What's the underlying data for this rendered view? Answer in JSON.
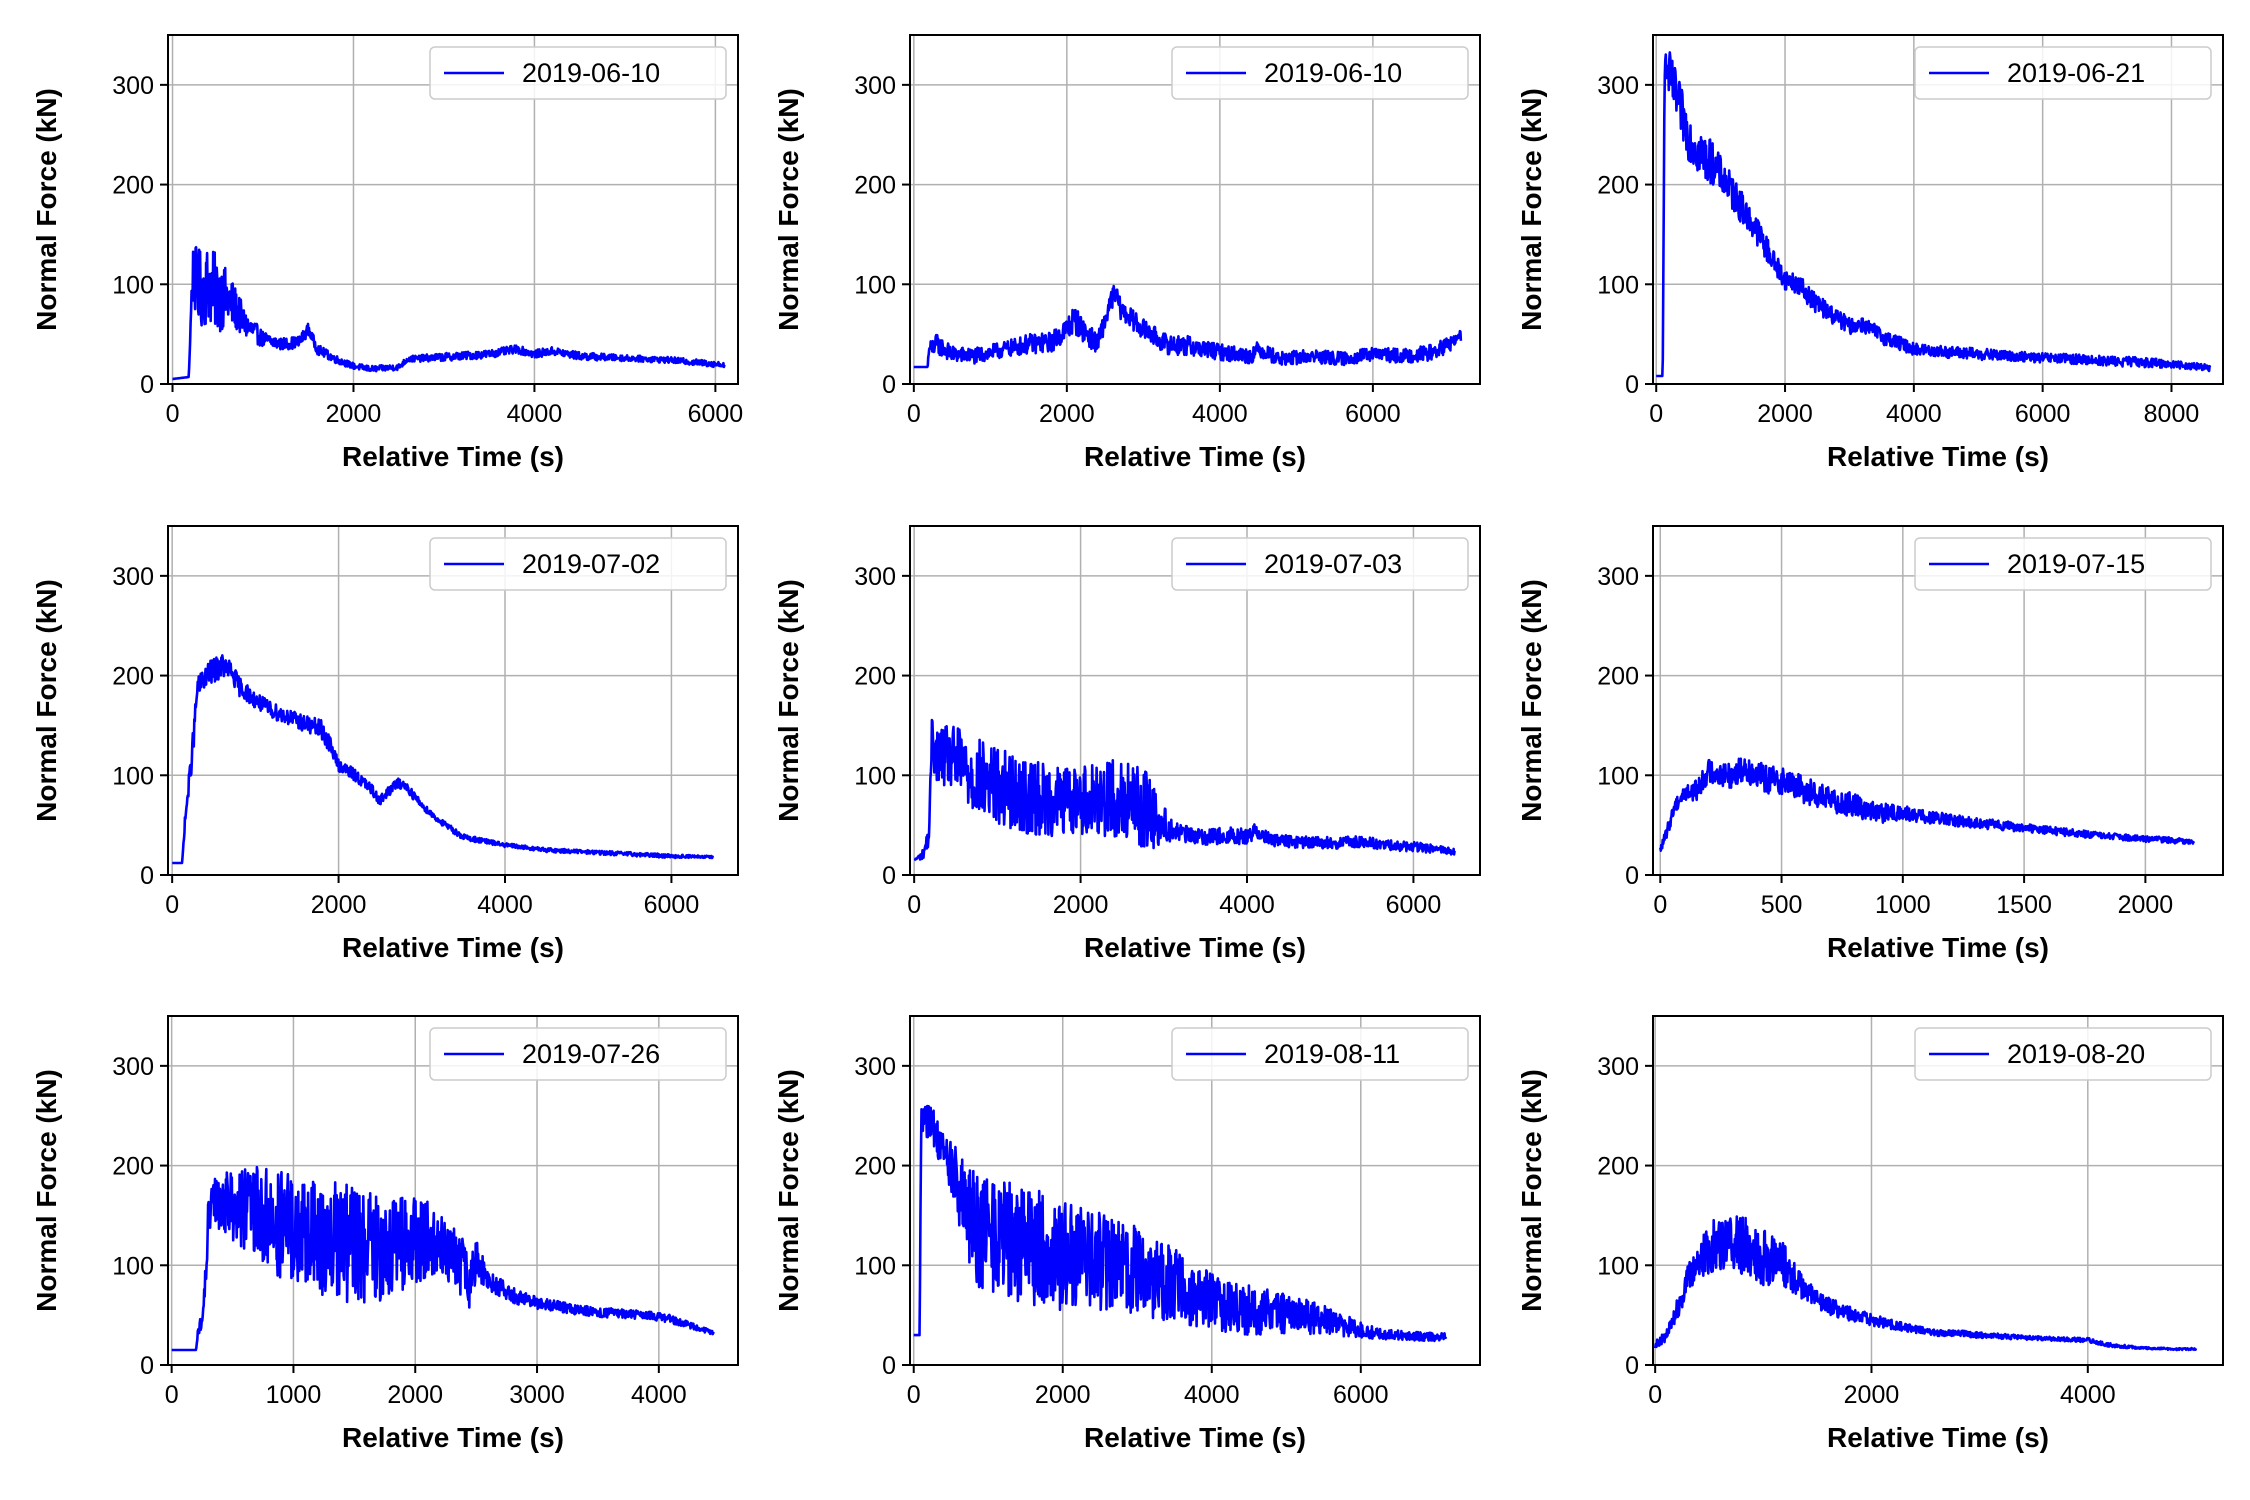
{
  "figure": {
    "background": "#ffffff",
    "grid_color": "#b0b0b0",
    "axis_color": "#000000"
  },
  "chart_data": [
    {
      "type": "line",
      "xlabel": "Relative Time (s)",
      "ylabel": "Normal Force (kN)",
      "xlim": [
        -50,
        6250
      ],
      "ylim": [
        0,
        350
      ],
      "xticks": [
        0,
        2000,
        4000,
        6000
      ],
      "yticks": [
        0,
        100,
        200,
        300
      ],
      "grid": true,
      "legend_position": "top-right",
      "series": [
        {
          "name": "2019-06-10",
          "color": "#0000ff",
          "x": [
            0,
            180,
            200,
            220,
            300,
            400,
            500,
            600,
            700,
            800,
            1000,
            1200,
            1400,
            1500,
            1600,
            1800,
            2000,
            2200,
            2500,
            2600,
            3000,
            3500,
            3800,
            4000,
            4200,
            4500,
            5000,
            5500,
            6000,
            6100
          ],
          "y": [
            5,
            7,
            60,
            110,
            95,
            100,
            90,
            85,
            75,
            60,
            45,
            40,
            42,
            55,
            35,
            25,
            18,
            15,
            17,
            25,
            27,
            30,
            35,
            30,
            33,
            28,
            26,
            24,
            20,
            19
          ],
          "noise": [
            0,
            0,
            10,
            30,
            40,
            40,
            38,
            30,
            22,
            14,
            8,
            6,
            6,
            6,
            5,
            4,
            3,
            3,
            3,
            3,
            4,
            4,
            4,
            4,
            4,
            4,
            3,
            3,
            3,
            2
          ]
        }
      ]
    },
    {
      "type": "line",
      "xlabel": "Relative Time (s)",
      "ylabel": "Normal Force (kN)",
      "xlim": [
        -50,
        7400
      ],
      "ylim": [
        0,
        350
      ],
      "xticks": [
        0,
        2000,
        4000,
        6000
      ],
      "yticks": [
        0,
        100,
        200,
        300
      ],
      "grid": true,
      "legend_position": "top-right",
      "series": [
        {
          "name": "2019-06-10",
          "color": "#0000ff",
          "x": [
            0,
            180,
            200,
            300,
            500,
            800,
            1200,
            1500,
            1800,
            2000,
            2100,
            2200,
            2400,
            2600,
            2650,
            2700,
            3000,
            3300,
            3600,
            4000,
            4400,
            4500,
            4800,
            5200,
            5600,
            6000,
            6400,
            6800,
            7000,
            7150
          ],
          "y": [
            17,
            17,
            35,
            40,
            30,
            28,
            35,
            40,
            42,
            55,
            65,
            55,
            40,
            88,
            90,
            75,
            55,
            40,
            38,
            32,
            28,
            35,
            25,
            28,
            25,
            30,
            28,
            32,
            40,
            48
          ],
          "noise": [
            0,
            0,
            8,
            10,
            8,
            8,
            8,
            10,
            10,
            12,
            14,
            12,
            10,
            10,
            10,
            10,
            10,
            10,
            10,
            8,
            8,
            8,
            7,
            7,
            7,
            7,
            7,
            8,
            8,
            6
          ]
        }
      ]
    },
    {
      "type": "line",
      "xlabel": "Relative Time (s)",
      "ylabel": "Normal Force (kN)",
      "xlim": [
        -50,
        8800
      ],
      "ylim": [
        0,
        350
      ],
      "xticks": [
        0,
        2000,
        4000,
        6000,
        8000
      ],
      "yticks": [
        0,
        100,
        200,
        300
      ],
      "grid": true,
      "legend_position": "top-right",
      "series": [
        {
          "name": "2019-06-21",
          "color": "#0000ff",
          "x": [
            0,
            100,
            130,
            200,
            300,
            400,
            500,
            600,
            700,
            800,
            900,
            1000,
            1200,
            1400,
            1600,
            1800,
            2000,
            2200,
            2500,
            3000,
            3200,
            3500,
            4000,
            4500,
            5000,
            5500,
            6000,
            6500,
            7000,
            7500,
            8000,
            8500,
            8600
          ],
          "y": [
            8,
            8,
            320,
            310,
            290,
            270,
            250,
            240,
            230,
            225,
            220,
            210,
            190,
            170,
            150,
            125,
            105,
            100,
            80,
            58,
            60,
            48,
            35,
            32,
            30,
            28,
            26,
            25,
            23,
            22,
            20,
            17,
            16
          ],
          "noise": [
            0,
            0,
            10,
            25,
            25,
            25,
            25,
            25,
            25,
            25,
            20,
            18,
            18,
            15,
            14,
            12,
            10,
            10,
            10,
            8,
            8,
            8,
            6,
            6,
            6,
            5,
            5,
            5,
            5,
            5,
            4,
            3,
            3
          ]
        }
      ]
    },
    {
      "type": "line",
      "xlabel": "Relative Time (s)",
      "ylabel": "Normal Force (kN)",
      "xlim": [
        -50,
        6800
      ],
      "ylim": [
        0,
        350
      ],
      "xticks": [
        0,
        2000,
        4000,
        6000
      ],
      "yticks": [
        0,
        100,
        200,
        300
      ],
      "grid": true,
      "legend_position": "top-right",
      "series": [
        {
          "name": "2019-07-02",
          "color": "#0000ff",
          "x": [
            0,
            120,
            150,
            250,
            300,
            400,
            500,
            600,
            700,
            800,
            1000,
            1200,
            1500,
            1800,
            1900,
            2000,
            2200,
            2400,
            2500,
            2700,
            2800,
            3000,
            3200,
            3500,
            4000,
            4500,
            5000,
            5500,
            6000,
            6500
          ],
          "y": [
            12,
            12,
            50,
            130,
            185,
            200,
            205,
            210,
            205,
            190,
            175,
            165,
            155,
            145,
            130,
            110,
            100,
            85,
            75,
            92,
            90,
            70,
            55,
            38,
            30,
            25,
            23,
            21,
            19,
            18
          ],
          "noise": [
            0,
            0,
            5,
            15,
            12,
            12,
            12,
            12,
            10,
            10,
            8,
            8,
            8,
            10,
            8,
            6,
            6,
            6,
            5,
            5,
            5,
            4,
            3,
            3,
            2,
            2,
            2,
            2,
            2,
            1
          ]
        }
      ]
    },
    {
      "type": "line",
      "xlabel": "Relative Time (s)",
      "ylabel": "Normal Force (kN)",
      "xlim": [
        -50,
        6800
      ],
      "ylim": [
        0,
        350
      ],
      "xticks": [
        0,
        2000,
        4000,
        6000
      ],
      "yticks": [
        0,
        100,
        200,
        300
      ],
      "grid": true,
      "legend_position": "top-right",
      "series": [
        {
          "name": "2019-07-03",
          "color": "#0000ff",
          "x": [
            0,
            100,
            180,
            220,
            240,
            300,
            500,
            700,
            1000,
            1300,
            1600,
            2000,
            2200,
            2500,
            2800,
            3000,
            3100,
            3300,
            3500,
            3800,
            4000,
            4100,
            4300,
            4600,
            5000,
            5400,
            5700,
            6000,
            6300,
            6500
          ],
          "y": [
            15,
            20,
            40,
            160,
            125,
            120,
            115,
            100,
            90,
            80,
            75,
            75,
            80,
            75,
            65,
            50,
            45,
            40,
            38,
            40,
            38,
            45,
            35,
            33,
            32,
            33,
            30,
            28,
            26,
            23
          ],
          "noise": [
            0,
            5,
            10,
            20,
            25,
            30,
            35,
            40,
            40,
            38,
            36,
            35,
            40,
            40,
            40,
            20,
            10,
            8,
            8,
            8,
            8,
            8,
            6,
            6,
            6,
            6,
            5,
            5,
            4,
            3
          ]
        }
      ]
    },
    {
      "type": "line",
      "xlabel": "Relative Time (s)",
      "ylabel": "Normal Force (kN)",
      "xlim": [
        -30,
        2320
      ],
      "ylim": [
        0,
        350
      ],
      "xticks": [
        0,
        500,
        1000,
        1500,
        2000
      ],
      "yticks": [
        0,
        100,
        200,
        300
      ],
      "grid": true,
      "legend_position": "top-right",
      "series": [
        {
          "name": "2019-07-15",
          "color": "#0000ff",
          "x": [
            0,
            30,
            60,
            100,
            150,
            200,
            250,
            300,
            350,
            400,
            450,
            500,
            600,
            700,
            800,
            900,
            1000,
            1100,
            1200,
            1300,
            1400,
            1500,
            1600,
            1700,
            1800,
            1900,
            2000,
            2100,
            2200
          ],
          "y": [
            25,
            45,
            70,
            82,
            85,
            105,
            100,
            100,
            108,
            100,
            95,
            95,
            85,
            75,
            70,
            62,
            62,
            58,
            55,
            52,
            50,
            47,
            45,
            42,
            40,
            38,
            36,
            35,
            33
          ],
          "noise": [
            3,
            6,
            8,
            8,
            10,
            12,
            12,
            14,
            14,
            14,
            14,
            14,
            14,
            12,
            12,
            10,
            8,
            6,
            6,
            5,
            5,
            4,
            4,
            4,
            3,
            3,
            3,
            3,
            2
          ]
        }
      ]
    },
    {
      "type": "line",
      "xlabel": "Relative Time (s)",
      "ylabel": "Normal Force (kN)",
      "xlim": [
        -30,
        4650
      ],
      "ylim": [
        0,
        350
      ],
      "xticks": [
        0,
        1000,
        2000,
        3000,
        4000
      ],
      "yticks": [
        0,
        100,
        200,
        300
      ],
      "grid": true,
      "legend_position": "top-right",
      "series": [
        {
          "name": "2019-07-26",
          "color": "#0000ff",
          "x": [
            0,
            200,
            220,
            260,
            300,
            350,
            500,
            700,
            900,
            1100,
            1300,
            1500,
            1700,
            1900,
            2100,
            2300,
            2400,
            2450,
            2500,
            2600,
            2800,
            3000,
            3300,
            3600,
            3900,
            4100,
            4300,
            4450
          ],
          "y": [
            15,
            15,
            35,
            50,
            140,
            165,
            160,
            150,
            140,
            130,
            125,
            120,
            118,
            120,
            125,
            110,
            95,
            80,
            105,
            85,
            70,
            62,
            56,
            52,
            50,
            46,
            38,
            32
          ],
          "noise": [
            0,
            0,
            8,
            8,
            25,
            25,
            35,
            50,
            55,
            60,
            60,
            60,
            55,
            50,
            40,
            30,
            30,
            25,
            20,
            10,
            8,
            6,
            5,
            5,
            4,
            4,
            3,
            2
          ]
        }
      ]
    },
    {
      "type": "line",
      "xlabel": "Relative Time (s)",
      "ylabel": "Normal Force (kN)",
      "xlim": [
        -50,
        7600
      ],
      "ylim": [
        0,
        350
      ],
      "xticks": [
        0,
        2000,
        4000,
        6000
      ],
      "yticks": [
        0,
        100,
        200,
        300
      ],
      "grid": true,
      "legend_position": "top-right",
      "series": [
        {
          "name": "2019-08-11",
          "color": "#0000ff",
          "x": [
            0,
            80,
            100,
            150,
            250,
            400,
            550,
            700,
            800,
            1000,
            1500,
            2000,
            2500,
            3000,
            3500,
            4000,
            4500,
            5000,
            5500,
            6000,
            6200,
            6500,
            7000,
            7150
          ],
          "y": [
            30,
            30,
            250,
            255,
            240,
            215,
            190,
            150,
            140,
            130,
            120,
            110,
            105,
            95,
            80,
            65,
            55,
            52,
            45,
            35,
            32,
            30,
            28,
            29
          ],
          "noise": [
            0,
            0,
            15,
            25,
            20,
            20,
            30,
            50,
            60,
            60,
            60,
            55,
            50,
            45,
            38,
            30,
            25,
            20,
            15,
            8,
            6,
            5,
            4,
            3
          ]
        }
      ]
    },
    {
      "type": "line",
      "xlabel": "Relative Time (s)",
      "ylabel": "Normal Force (kN)",
      "xlim": [
        -20,
        5250
      ],
      "ylim": [
        0,
        350
      ],
      "xticks": [
        0,
        2000,
        4000
      ],
      "yticks": [
        0,
        100,
        200,
        300
      ],
      "grid": true,
      "legend_position": "top-right",
      "series": [
        {
          "name": "2019-08-20",
          "color": "#0000ff",
          "x": [
            0,
            50,
            100,
            200,
            300,
            400,
            500,
            600,
            700,
            800,
            900,
            1000,
            1100,
            1200,
            1300,
            1500,
            1700,
            2000,
            2300,
            2600,
            2800,
            3000,
            3500,
            4000,
            4200,
            4500,
            4800,
            5000
          ],
          "y": [
            20,
            25,
            28,
            55,
            85,
            105,
            115,
            125,
            125,
            120,
            115,
            110,
            105,
            100,
            85,
            65,
            55,
            45,
            38,
            32,
            32,
            30,
            27,
            25,
            20,
            17,
            16,
            16
          ],
          "noise": [
            3,
            5,
            5,
            10,
            15,
            20,
            25,
            30,
            30,
            30,
            30,
            30,
            25,
            22,
            15,
            10,
            8,
            6,
            4,
            3,
            3,
            3,
            2,
            2,
            2,
            1,
            1,
            1
          ]
        }
      ]
    }
  ]
}
